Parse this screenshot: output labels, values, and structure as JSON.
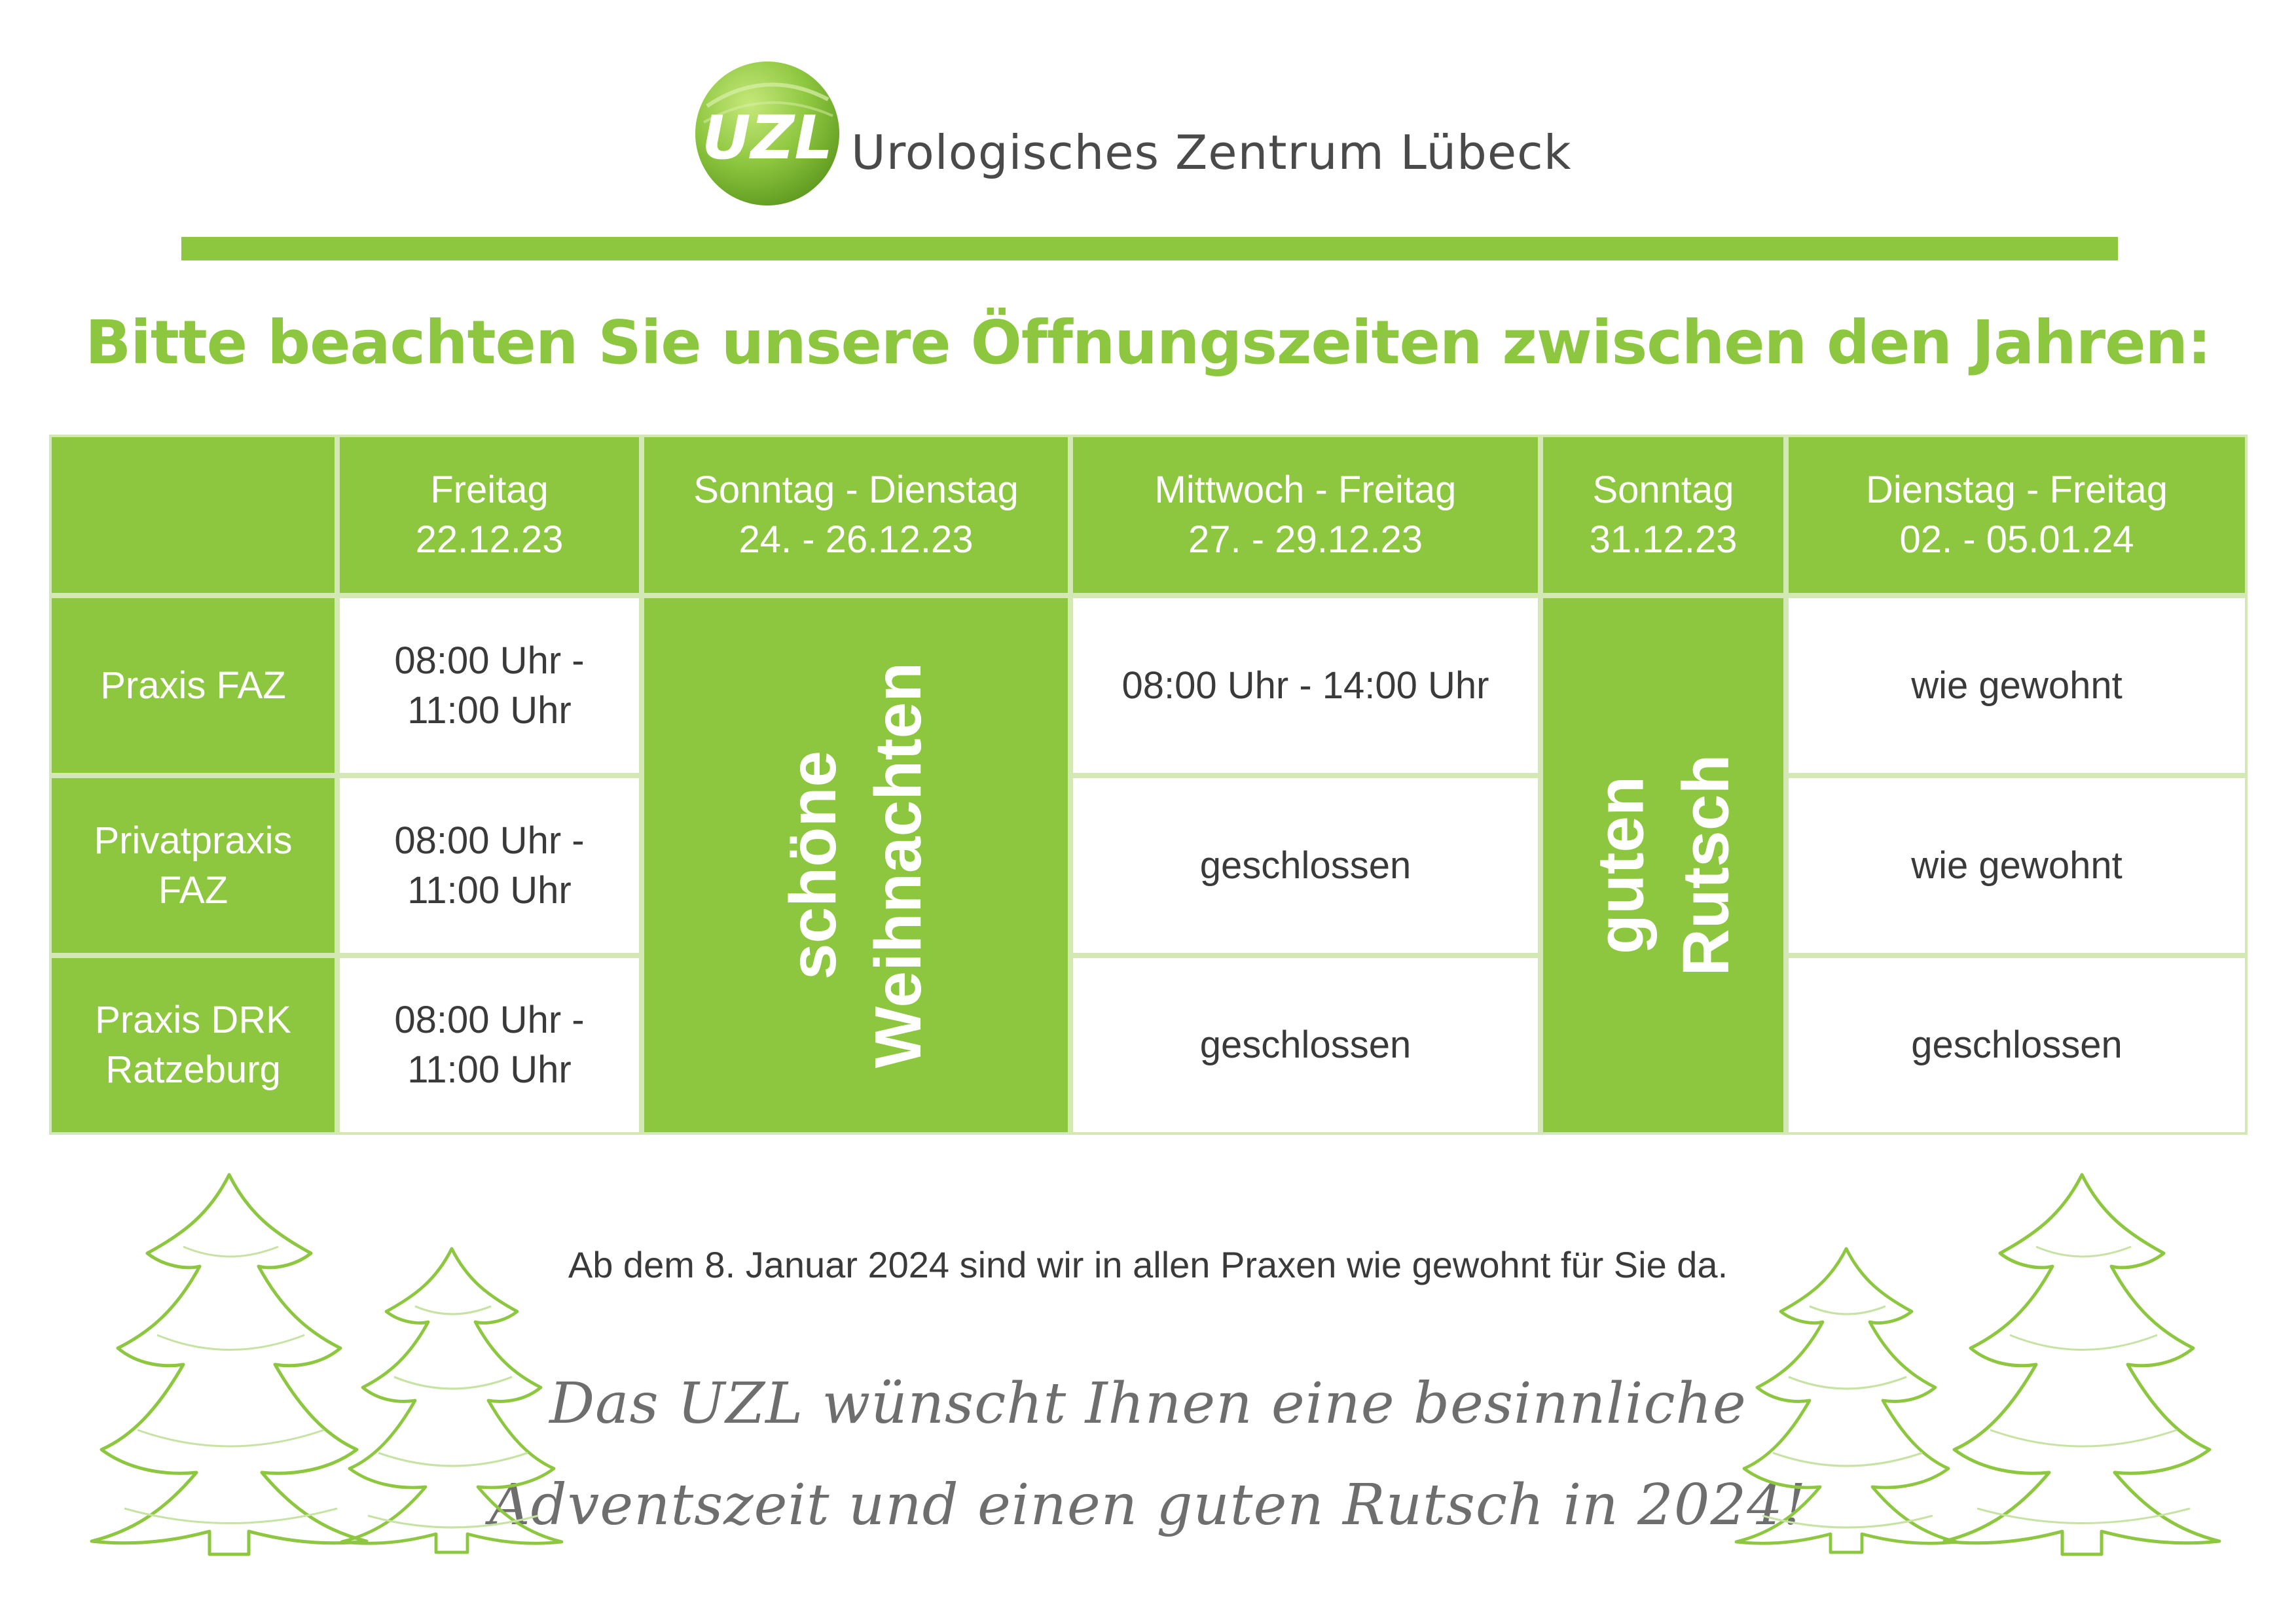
{
  "header": {
    "logo_text": "UZL",
    "brand_name": "Urologisches Zentrum Lübeck",
    "headline": "Bitte beachten Sie unsere Öffnungszeiten zwischen den Jahren:"
  },
  "table": {
    "columns": [
      {
        "day": "Freitag",
        "date": "22.12.23"
      },
      {
        "day": "Sonntag - Dienstag",
        "date": "24. - 26.12.23"
      },
      {
        "day": "Mittwoch - Freitag",
        "date": "27. - 29.12.23"
      },
      {
        "day": "Sonntag",
        "date": "31.12.23"
      },
      {
        "day": "Dienstag - Freitag",
        "date": "02. - 05.01.24"
      }
    ],
    "rows": [
      {
        "line1": "Praxis FAZ",
        "line2": "",
        "fri_l1": "08:00 Uhr -",
        "fri_l2": "11:00 Uhr",
        "midweek": "08:00 Uhr - 14:00 Uhr",
        "newyear": "wie gewohnt"
      },
      {
        "line1": "Privatpraxis",
        "line2": "FAZ",
        "fri_l1": "08:00 Uhr -",
        "fri_l2": "11:00 Uhr",
        "midweek": "geschlossen",
        "newyear": "wie gewohnt"
      },
      {
        "line1": "Praxis DRK",
        "line2": "Ratzeburg",
        "fri_l1": "08:00 Uhr -",
        "fri_l2": "11:00 Uhr",
        "midweek": "geschlossen",
        "newyear": "geschlossen"
      }
    ],
    "christmas_l1": "schöne",
    "christmas_l2": "Weihnachten",
    "newyear_l1": "guten",
    "newyear_l2": "Rutsch"
  },
  "footer": {
    "note": "Ab dem 8. Januar 2024 sind wir in allen Praxen wie gewohnt für Sie da.",
    "greeting_l1": "Das UZL wünscht Ihnen eine besinnliche",
    "greeting_l2": "Adventszeit und einen guten Rutsch in 2024!"
  },
  "colors": {
    "accent": "#8dc63f",
    "grid": "#d4e8b6",
    "text": "#3a3a3a"
  },
  "icons": [
    "uzl-logo-icon",
    "christmas-tree-icon"
  ]
}
